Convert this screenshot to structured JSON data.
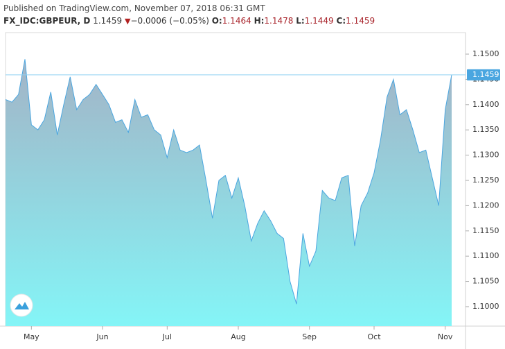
{
  "header": {
    "published": "Published on TradingView.com, November 07, 2018 06:31 GMT",
    "symbol": "FX_IDC:GBPEUR, D",
    "price": "1.1459",
    "change": "−0.0006 (−0.05%)",
    "ohlc": [
      {
        "key": "O:",
        "value": "1.1464"
      },
      {
        "key": "H:",
        "value": "1.1478"
      },
      {
        "key": "L:",
        "value": "1.1449"
      },
      {
        "key": "C:",
        "value": "1.1459"
      }
    ]
  },
  "chart_data": {
    "type": "area",
    "color": "#4aa6e0",
    "categories": [
      null,
      null,
      null,
      null,
      "May",
      null,
      null,
      null,
      null,
      null,
      null,
      null,
      null,
      null,
      null,
      "Jun",
      null,
      null,
      null,
      null,
      null,
      null,
      null,
      null,
      null,
      "Jul",
      null,
      null,
      null,
      null,
      null,
      null,
      null,
      null,
      null,
      null,
      "Aug",
      null,
      null,
      null,
      null,
      null,
      null,
      null,
      null,
      null,
      null,
      "Sep",
      null,
      null,
      null,
      null,
      null,
      null,
      null,
      null,
      null,
      "Oct",
      null,
      null,
      null,
      null,
      null,
      null,
      null,
      null,
      null,
      null,
      "Nov",
      null
    ],
    "values": [
      1.141,
      1.1405,
      1.142,
      1.149,
      1.136,
      1.135,
      1.137,
      1.1425,
      1.134,
      1.14,
      1.1455,
      1.139,
      1.141,
      1.142,
      1.144,
      1.142,
      1.14,
      1.1365,
      1.137,
      1.1345,
      1.141,
      1.1375,
      1.138,
      1.135,
      1.134,
      1.1295,
      1.135,
      1.131,
      1.1305,
      1.131,
      1.132,
      1.125,
      1.1175,
      1.125,
      1.126,
      1.1215,
      1.1255,
      1.12,
      1.113,
      1.1165,
      1.119,
      1.117,
      1.1145,
      1.1135,
      1.105,
      1.1005,
      1.1145,
      1.108,
      1.111,
      1.123,
      1.1215,
      1.121,
      1.1255,
      1.126,
      1.112,
      1.12,
      1.1225,
      1.1265,
      1.133,
      1.1415,
      1.145,
      1.138,
      1.139,
      1.135,
      1.1305,
      1.131,
      1.1255,
      1.12,
      1.139,
      1.1459
    ],
    "last_price": 1.1459,
    "ylim": [
      1.09615,
      1.15426
    ],
    "yticks": [
      {
        "value": 1.1,
        "label": "1.1000"
      },
      {
        "value": 1.105,
        "label": "1.1050"
      },
      {
        "value": 1.11,
        "label": "1.1100"
      },
      {
        "value": 1.115,
        "label": "1.1150"
      },
      {
        "value": 1.12,
        "label": "1.1200"
      },
      {
        "value": 1.125,
        "label": "1.1250"
      },
      {
        "value": 1.13,
        "label": "1.1300"
      },
      {
        "value": 1.135,
        "label": "1.1350"
      },
      {
        "value": 1.14,
        "label": "1.1400"
      },
      {
        "value": 1.145,
        "label": "1.1450"
      },
      {
        "value": 1.15,
        "label": "1.1500"
      }
    ]
  }
}
